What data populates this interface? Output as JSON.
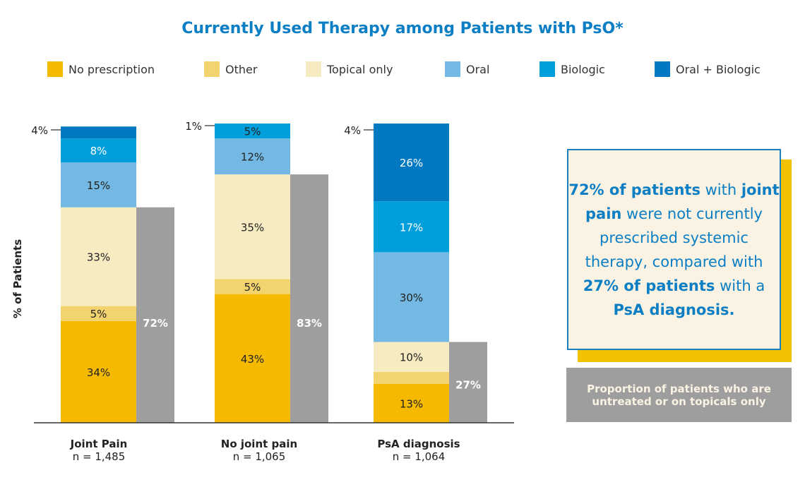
{
  "chart_data": {
    "type": "bar",
    "stacked": true,
    "title": "Currently Used Therapy among Patients with PsO*",
    "ylabel": "% of Patients",
    "ylim": [
      0,
      100
    ],
    "grid": false,
    "legend_placement": "top",
    "categories": [
      {
        "label": "Joint Pain",
        "n": "n = 1,485"
      },
      {
        "label": "No joint pain",
        "n": "n = 1,065"
      },
      {
        "label": "PsA diagnosis",
        "n": "n = 1,064"
      }
    ],
    "series": [
      {
        "name": "No prescription",
        "color": "#F5BA00",
        "values": [
          34,
          43,
          13
        ]
      },
      {
        "name": "Other",
        "color": "#F3D36E",
        "values": [
          5,
          5,
          4
        ]
      },
      {
        "name": "Topical only",
        "color": "#F7EBC1",
        "values": [
          33,
          35,
          10
        ]
      },
      {
        "name": "Oral",
        "color": "#74B9E3",
        "values": [
          15,
          12,
          30
        ]
      },
      {
        "name": "Biologic",
        "color": "#009EDB",
        "values": [
          8,
          5,
          17
        ]
      },
      {
        "name": "Oral + Biologic",
        "color": "#0079C2",
        "values": [
          4,
          1,
          26
        ]
      }
    ],
    "untreated_or_topical": {
      "color": "#9E9E9E",
      "values": [
        72,
        83,
        27
      ]
    }
  },
  "callout": {
    "b1": "72% of patients",
    "t1": " with ",
    "b2": "joint pain",
    "t2": " were not currently prescribed systemic therapy, compared with ",
    "b3": "27% of patients",
    "t3": " with a ",
    "b4": "PsA diagnosis."
  },
  "grey_note": "Proportion of patients who are untreated or on topicals only"
}
